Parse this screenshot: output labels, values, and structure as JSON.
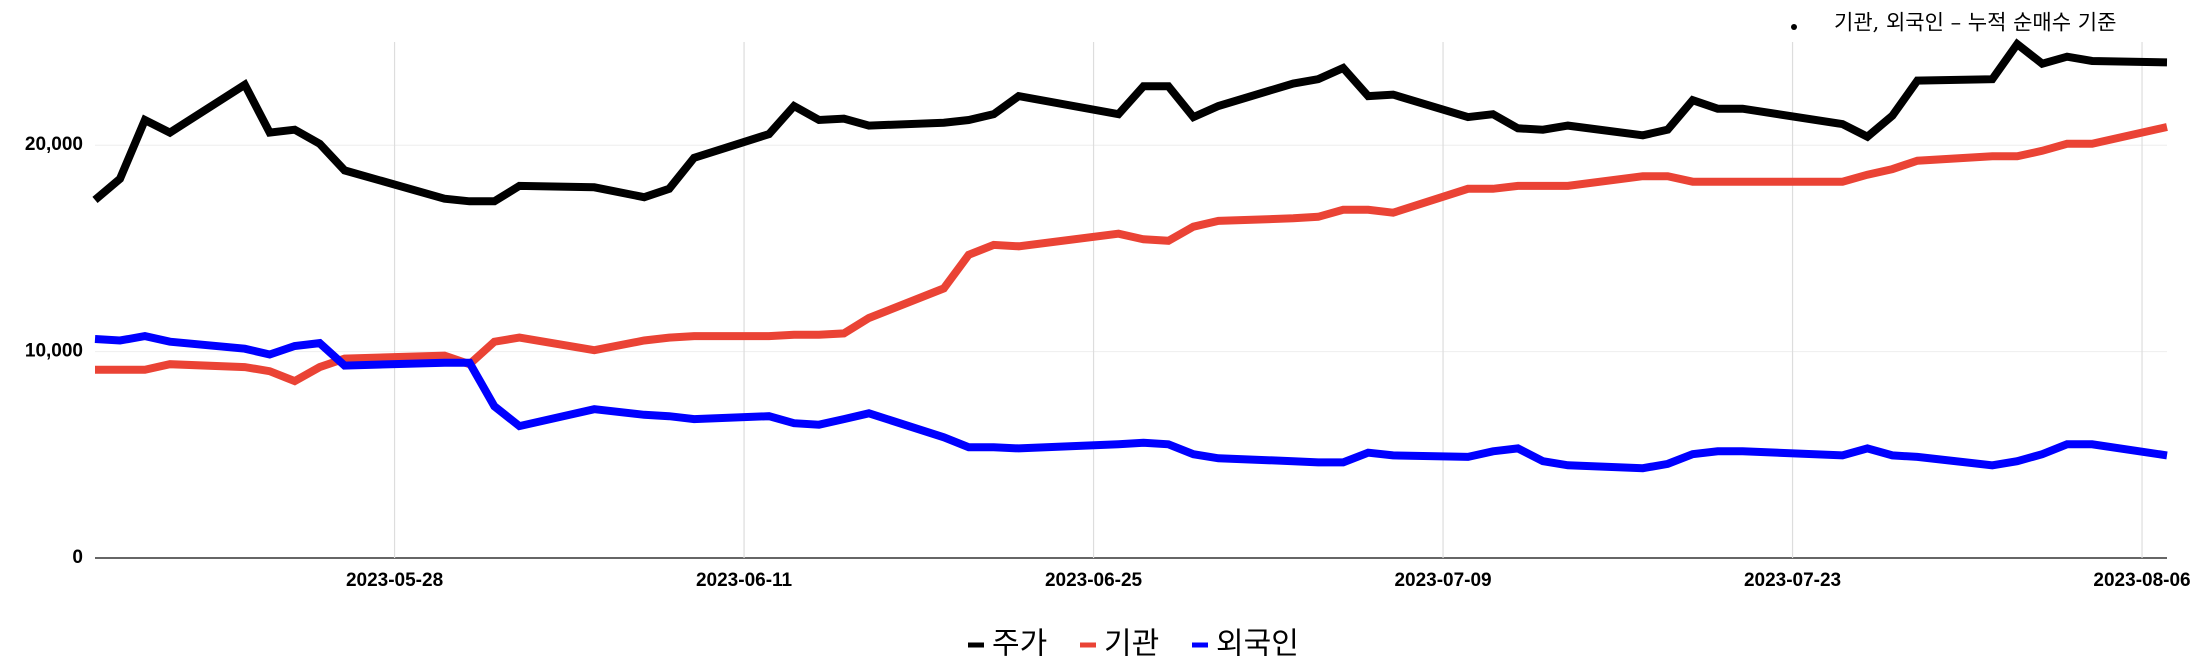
{
  "chart_data": {
    "type": "line",
    "annotation": "기관, 외국인 – 누적 순매수 기준",
    "x": [
      "2023-05-16",
      "2023-05-17",
      "2023-05-18",
      "2023-05-19",
      "2023-05-22",
      "2023-05-23",
      "2023-05-24",
      "2023-05-25",
      "2023-05-26",
      "2023-05-30",
      "2023-05-31",
      "2023-06-01",
      "2023-06-02",
      "2023-06-05",
      "2023-06-07",
      "2023-06-08",
      "2023-06-09",
      "2023-06-12",
      "2023-06-13",
      "2023-06-14",
      "2023-06-15",
      "2023-06-16",
      "2023-06-19",
      "2023-06-20",
      "2023-06-21",
      "2023-06-22",
      "2023-06-26",
      "2023-06-27",
      "2023-06-28",
      "2023-06-29",
      "2023-06-30",
      "2023-07-03",
      "2023-07-04",
      "2023-07-05",
      "2023-07-06",
      "2023-07-07",
      "2023-07-10",
      "2023-07-11",
      "2023-07-12",
      "2023-07-13",
      "2023-07-14",
      "2023-07-17",
      "2023-07-18",
      "2023-07-19",
      "2023-07-20",
      "2023-07-21",
      "2023-07-25",
      "2023-07-26",
      "2023-07-27",
      "2023-07-28",
      "2023-07-31",
      "2023-08-01",
      "2023-08-02",
      "2023-08-03",
      "2023-08-04",
      "2023-08-07"
    ],
    "series": [
      {
        "name": "주가",
        "color": "#000000",
        "values": [
          17350,
          18370,
          21220,
          20610,
          22930,
          20610,
          20750,
          20070,
          18780,
          17410,
          17280,
          17280,
          18030,
          17960,
          17480,
          17890,
          19390,
          20540,
          21900,
          21220,
          21290,
          20950,
          21090,
          21220,
          21500,
          22380,
          21500,
          22860,
          22860,
          21360,
          21900,
          22990,
          23200,
          23740,
          22380,
          22450,
          21360,
          21500,
          20820,
          20750,
          20950,
          20480,
          20750,
          22180,
          21770,
          21770,
          21020,
          20410,
          21430,
          23130,
          23200,
          24900,
          23950,
          24290,
          24080,
          24010
        ]
      },
      {
        "name": "기관",
        "color": "#ea4335",
        "values": [
          9120,
          9120,
          9120,
          9390,
          9250,
          9050,
          8570,
          9250,
          9660,
          9800,
          9390,
          10480,
          10680,
          10070,
          10540,
          10680,
          10750,
          10750,
          10820,
          10820,
          10880,
          11630,
          13060,
          14690,
          15170,
          15100,
          15710,
          15440,
          15370,
          16050,
          16330,
          16460,
          16530,
          16870,
          16870,
          16730,
          17890,
          17890,
          18030,
          18030,
          18030,
          18500,
          18500,
          18230,
          18230,
          18230,
          18230,
          18570,
          18840,
          19250,
          19460,
          19460,
          19730,
          20070,
          20070,
          20880
        ]
      },
      {
        "name": "외국인",
        "color": "#0000ff",
        "values": [
          10610,
          10540,
          10750,
          10480,
          10140,
          9860,
          10270,
          10410,
          9320,
          9460,
          9460,
          7350,
          6390,
          7210,
          6940,
          6870,
          6730,
          6870,
          6530,
          6460,
          6730,
          7010,
          5850,
          5370,
          5370,
          5310,
          5510,
          5580,
          5510,
          5030,
          4830,
          4690,
          4630,
          4630,
          5100,
          4970,
          4900,
          5170,
          5310,
          4690,
          4490,
          4350,
          4560,
          5030,
          5170,
          5170,
          4970,
          5310,
          4970,
          4900,
          4490,
          4690,
          5030,
          5510,
          5510,
          4970
        ]
      }
    ],
    "xlim": [
      "2023-05-16",
      "2023-08-07"
    ],
    "xticks": [
      "2023-05-28",
      "2023-06-11",
      "2023-06-25",
      "2023-07-09",
      "2023-07-23",
      "2023-08-06"
    ],
    "ylim": [
      0,
      25000
    ],
    "yticks": [
      0,
      {
        "value": 10000,
        "label": "10,000"
      },
      {
        "value": 20000,
        "label": "20,000"
      }
    ],
    "grid": true,
    "legend": "bottom"
  }
}
